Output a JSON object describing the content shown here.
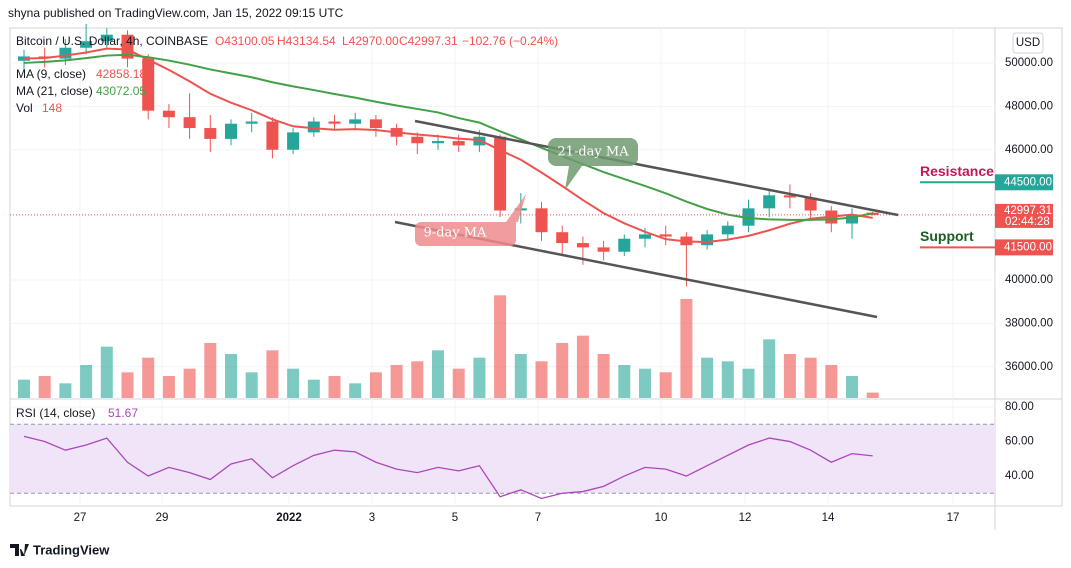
{
  "header": {
    "publisher": "shyna published on TradingView.com, Jan 15, 2022 09:15 UTC",
    "footer": "TradingView"
  },
  "chart_data": [
    {
      "type": "candlestick",
      "title": "Bitcoin / U.S. Dollar, 4h, COINBASE",
      "ohlc_labels": [
        "O43100.05",
        "H43134.54",
        "L42970.00",
        "C42997.31",
        "−102.76 (−0.24%)"
      ],
      "currency": "USD",
      "up_color": "#26a69a",
      "down_color": "#ef5350",
      "open": [
        50100,
        50300,
        50200,
        50700,
        51000,
        51300,
        50200,
        47800,
        47500,
        47000,
        46500,
        47200,
        47300,
        46000,
        46800,
        47300,
        47200,
        47400,
        47000,
        46600,
        46300,
        46400,
        46200,
        46600,
        43200,
        43300,
        42200,
        41700,
        41500,
        41300,
        41900,
        42100,
        42000,
        41600,
        42100,
        42500,
        43300,
        43900,
        43800,
        43200,
        42600,
        43100.05
      ],
      "high": [
        50600,
        50700,
        51100,
        51800,
        51600,
        51500,
        50400,
        48100,
        48600,
        47600,
        47400,
        47700,
        47500,
        47000,
        47500,
        47600,
        47700,
        47600,
        47200,
        46800,
        46700,
        46700,
        46900,
        46700,
        44000,
        43600,
        42500,
        42000,
        41800,
        42100,
        42400,
        42500,
        42200,
        42300,
        42700,
        43700,
        44200,
        44400,
        44000,
        43400,
        43300,
        43134.54
      ],
      "low": [
        49700,
        49800,
        49900,
        50400,
        50700,
        49800,
        47400,
        47000,
        46500,
        45900,
        46200,
        46800,
        45600,
        45800,
        46600,
        46900,
        46900,
        46600,
        46200,
        45800,
        46000,
        45900,
        45900,
        42900,
        42600,
        41800,
        41200,
        40700,
        40900,
        41100,
        41500,
        41600,
        39700,
        41400,
        41800,
        42200,
        42900,
        43300,
        42800,
        42200,
        41900,
        42970.0
      ],
      "close": [
        50300,
        50200,
        50700,
        51000,
        51300,
        50200,
        47800,
        47500,
        47000,
        46500,
        47200,
        47300,
        46000,
        46800,
        47300,
        47200,
        47400,
        47000,
        46600,
        46300,
        46400,
        46200,
        46600,
        43200,
        43300,
        42200,
        41700,
        41500,
        41300,
        41900,
        42100,
        42000,
        41600,
        42100,
        42500,
        43300,
        43900,
        43800,
        43200,
        42600,
        43000,
        42997.31
      ],
      "ma": [
        {
          "name": "MA (9, close)",
          "color": "#ef5350",
          "values": [
            50200,
            50230,
            50340,
            50480,
            50660,
            50620,
            50150,
            49680,
            49150,
            48580,
            48170,
            47820,
            47400,
            47080,
            46990,
            46920,
            46950,
            46910,
            46800,
            46700,
            46620,
            46510,
            46450,
            45980,
            45540,
            44950,
            44330,
            43680,
            43080,
            42610,
            42220,
            41880,
            41770,
            41750,
            41860,
            42030,
            42290,
            42590,
            42820,
            42920,
            43010,
            42858.18
          ]
        },
        {
          "name": "MA (21, close)",
          "color": "#43a047",
          "values": [
            50000,
            50050,
            50120,
            50220,
            50340,
            50380,
            50260,
            50110,
            49920,
            49700,
            49520,
            49340,
            49110,
            48920,
            48750,
            48570,
            48400,
            48210,
            48040,
            47880,
            47720,
            47460,
            47250,
            46850,
            46480,
            46090,
            45710,
            45340,
            44970,
            44650,
            44330,
            43990,
            43610,
            43270,
            43010,
            42850,
            42790,
            42770,
            42770,
            42790,
            42880,
            43072.05
          ]
        }
      ],
      "volume": {
        "name": "Vol",
        "ylim": [
          0,
          3000
        ],
        "values": [
          500,
          600,
          400,
          900,
          1400,
          700,
          1100,
          600,
          800,
          1500,
          1200,
          700,
          1300,
          800,
          500,
          600,
          400,
          700,
          900,
          1000,
          1300,
          800,
          1100,
          2800,
          1200,
          1000,
          1500,
          1700,
          1200,
          900,
          800,
          700,
          2700,
          1100,
          1000,
          800,
          1600,
          1200,
          1100,
          900,
          600,
          148
        ]
      },
      "ylim": [
        34560,
        51610
      ],
      "yticks": [
        {
          "value": 36000,
          "label": "36000.00"
        },
        {
          "value": 38000,
          "label": "38000.00"
        },
        {
          "value": 40000,
          "label": "40000.00"
        },
        {
          "value": 46000,
          "label": "46000.00"
        },
        {
          "value": 48000,
          "label": "48000.00"
        },
        {
          "value": 50000,
          "label": "50000.00"
        }
      ],
      "resistance": {
        "label": "Resistance",
        "value": 44500,
        "value_label": "44500.00"
      },
      "support": {
        "label": "Support",
        "value": 41500,
        "value_label": "41500.00"
      },
      "countdown": "02:44:28",
      "annotations": [
        "21-day MA",
        "9-day MA"
      ],
      "x_labels": [
        "27",
        "29",
        "2022",
        "3",
        "5",
        "7",
        "10",
        "12",
        "14",
        "17"
      ]
    },
    {
      "type": "line",
      "name": "RSI (14, close)",
      "color": "#ab47bc",
      "values": [
        63,
        60,
        55,
        58,
        62,
        48,
        40,
        45,
        42,
        38,
        47,
        50,
        39,
        46,
        52,
        55,
        54,
        48,
        44,
        42,
        45,
        43,
        46,
        28,
        32,
        27,
        30,
        31,
        34,
        40,
        45,
        44,
        40,
        46,
        52,
        58,
        62,
        60,
        55,
        48,
        53,
        51.67
      ],
      "bands": [
        30,
        70
      ],
      "ylim": [
        23.2,
        84.1
      ],
      "yticks": [
        {
          "value": 40,
          "label": "40.00"
        },
        {
          "value": 60,
          "label": "60.00"
        },
        {
          "value": 80,
          "label": "80.00"
        }
      ]
    }
  ]
}
